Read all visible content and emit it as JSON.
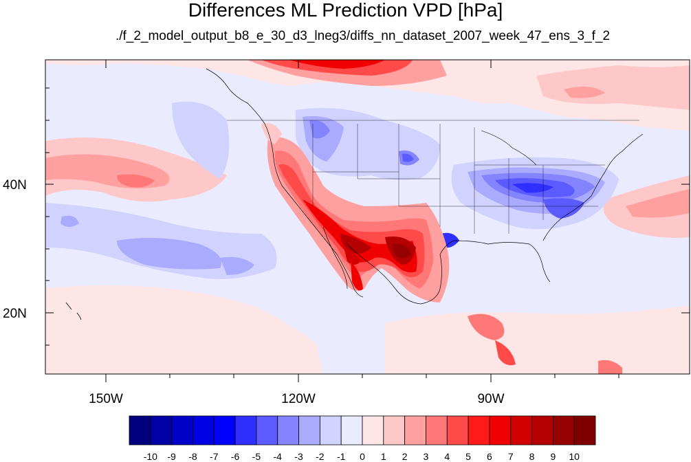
{
  "title": "Differences ML Prediction VPD [hPa]",
  "subtitle": "./f_2_model_output_b8_e_30_d3_lneg3/diffs_nn_dataset_2007_week_47_ens_3_f_2",
  "map": {
    "projection": "cylindrical-equidistant",
    "lon_range": [
      -160,
      -60
    ],
    "lat_range": [
      10,
      59
    ],
    "lon_ticks": [
      "150W",
      "120W",
      "90W"
    ],
    "lat_ticks": [
      "40N",
      "20N"
    ],
    "field_description": "VPD prediction difference field; positive (red) over US Southwest, Texas and northern Mexico; negative (blue) over Ohio Valley, mid-Atlantic and northern Rockies; weak positive over Pacific bands and southern Canada"
  },
  "colorbar": {
    "labels": [
      "-10",
      "-9",
      "-8",
      "-7",
      "-6",
      "-5",
      "-4",
      "-3",
      "-2",
      "-1",
      "0",
      "1",
      "2",
      "3",
      "4",
      "5",
      "6",
      "7",
      "8",
      "9",
      "10"
    ],
    "colors": [
      "#00007f",
      "#0000a5",
      "#0000c8",
      "#0000e4",
      "#0000ff",
      "#2f2fff",
      "#5b5bff",
      "#8484ff",
      "#aaaaff",
      "#d2d2ff",
      "#ebebff",
      "#ffe6e6",
      "#ffc8c8",
      "#ffa0a0",
      "#ff7878",
      "#ff4a4a",
      "#ff1a1a",
      "#f00000",
      "#d20000",
      "#b40000",
      "#960000",
      "#7f0000"
    ]
  }
}
